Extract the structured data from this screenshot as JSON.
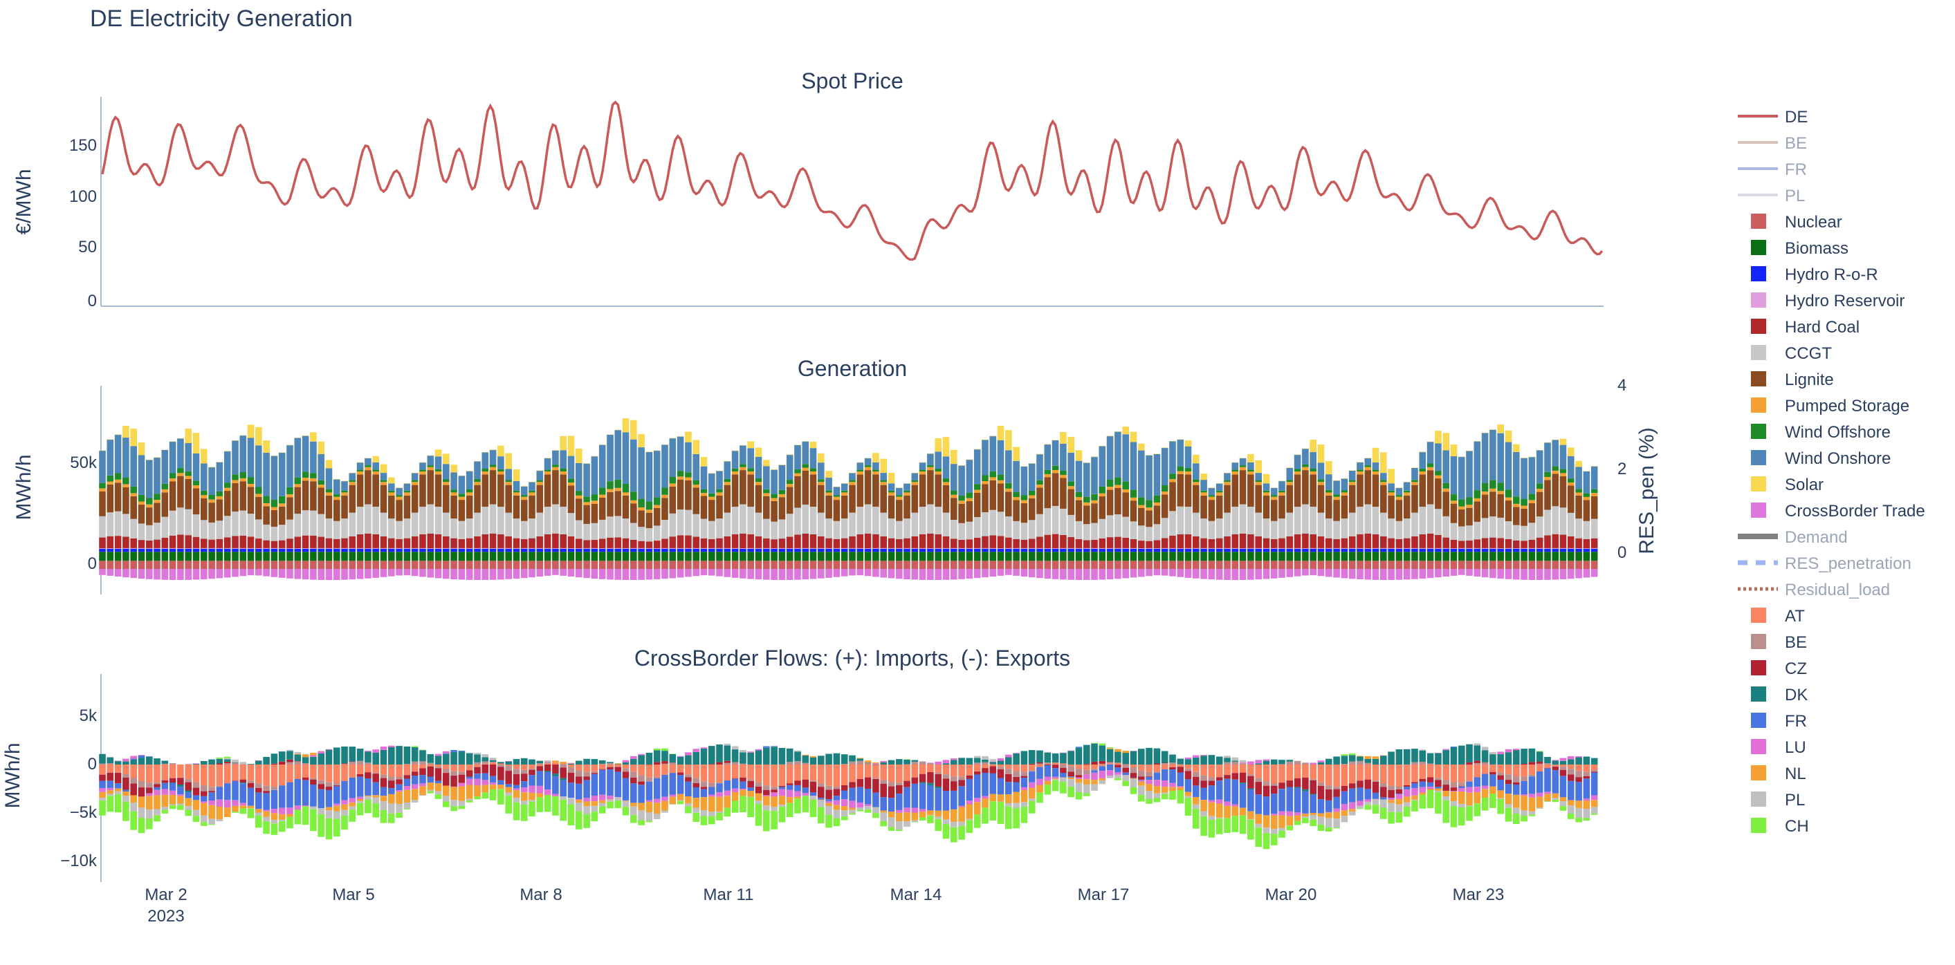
{
  "title": "DE Electricity Generation",
  "colors": {
    "text": "#2a3f5f",
    "axis": "#a9bad0"
  },
  "chart_data": [
    {
      "type": "line",
      "title": "Spot Price",
      "ylabel": "€/MWh",
      "x_range": [
        "2023-03-01",
        "2023-03-25"
      ],
      "y_ticks": [
        "0",
        "50",
        "100",
        "150"
      ],
      "ylim": [
        0,
        190
      ],
      "series": [
        {
          "name": "DE",
          "color": "#c85a5a",
          "points": [
            [
              "2023-03-01",
              135
            ],
            [
              "2023-03-02",
              130
            ],
            [
              "2023-03-03",
              140
            ],
            [
              "2023-03-04",
              105
            ],
            [
              "2023-03-05",
              110
            ],
            [
              "2023-03-06",
              125
            ],
            [
              "2023-03-07",
              140
            ],
            [
              "2023-03-08",
              115
            ],
            [
              "2023-03-09",
              145
            ],
            [
              "2023-03-10",
              120
            ],
            [
              "2023-03-11",
              110
            ],
            [
              "2023-03-12",
              105
            ],
            [
              "2023-03-13",
              80
            ],
            [
              "2023-03-14",
              45
            ],
            [
              "2023-03-15",
              110
            ],
            [
              "2023-03-16",
              130
            ],
            [
              "2023-03-17",
              110
            ],
            [
              "2023-03-18",
              115
            ],
            [
              "2023-03-19",
              95
            ],
            [
              "2023-03-20",
              110
            ],
            [
              "2023-03-21",
              115
            ],
            [
              "2023-03-22",
              100
            ],
            [
              "2023-03-23",
              80
            ],
            [
              "2023-03-24",
              70
            ],
            [
              "2023-03-25",
              55
            ]
          ]
        },
        {
          "name": "BE",
          "color": "#d6c1b8",
          "visible": false
        },
        {
          "name": "FR",
          "color": "#a9b7e8",
          "visible": false
        },
        {
          "name": "PL",
          "color": "#d9dde3",
          "visible": false
        }
      ]
    },
    {
      "type": "bar",
      "title": "Generation",
      "ylabel": "MWh/h",
      "y2label": "RES_pen (%)",
      "y_ticks": [
        "0",
        "50k"
      ],
      "y2_ticks": [
        "0",
        "2",
        "4"
      ],
      "ylim": [
        -15000,
        92000
      ],
      "x_range": [
        "2023-03-01",
        "2023-03-25"
      ],
      "stacked": true,
      "series": [
        {
          "name": "Nuclear",
          "color": "#cd5c5c",
          "values": [
            4000
          ]
        },
        {
          "name": "Biomass",
          "color": "#0a6e14",
          "values": [
            4500
          ]
        },
        {
          "name": "Hydro R-o-R",
          "color": "#1426ff",
          "values": [
            1500
          ]
        },
        {
          "name": "Hydro Reservoir",
          "color": "#e0a0de",
          "values": [
            300
          ]
        },
        {
          "name": "Hard Coal",
          "color": "#b22828",
          "values": [
            6000
          ]
        },
        {
          "name": "CCGT",
          "color": "#c8c8c8",
          "values": [
            12000
          ]
        },
        {
          "name": "Lignite",
          "color": "#8b4a20",
          "values": [
            14000
          ]
        },
        {
          "name": "Pumped Storage",
          "color": "#f5a033",
          "values": [
            1500
          ]
        },
        {
          "name": "Wind Offshore",
          "color": "#1e8a28",
          "values": [
            3000
          ]
        },
        {
          "name": "Wind Onshore",
          "color": "#4f86b8",
          "values": [
            18000
          ]
        },
        {
          "name": "Solar",
          "color": "#f8d850",
          "values": [
            6000
          ]
        },
        {
          "name": "CrossBorder Trade",
          "color": "#dd77dd",
          "values": [
            -5000
          ]
        },
        {
          "name": "Demand",
          "color": "#808080",
          "visible": false
        },
        {
          "name": "RES_penetration",
          "color": "#a0b4f0",
          "visible": false
        },
        {
          "name": "Residual_load",
          "color": "#b86a5c",
          "visible": false
        }
      ]
    },
    {
      "type": "bar",
      "title": "CrossBorder Flows: (+): Imports, (-): Exports",
      "ylabel": "MWh/h",
      "y_ticks": [
        "−10k",
        "−5k",
        "0",
        "5k"
      ],
      "ylim": [
        -12000,
        9000
      ],
      "x_ticks": [
        "Mar 2",
        "Mar 5",
        "Mar 8",
        "Mar 11",
        "Mar 14",
        "Mar 17",
        "Mar 20",
        "Mar 23"
      ],
      "x_year": "2023",
      "stacked": true,
      "series": [
        {
          "name": "AT",
          "color": "#fa8462"
        },
        {
          "name": "BE",
          "color": "#bc8f8f"
        },
        {
          "name": "CZ",
          "color": "#b22232"
        },
        {
          "name": "DK",
          "color": "#1a8080"
        },
        {
          "name": "FR",
          "color": "#4a74e0"
        },
        {
          "name": "LU",
          "color": "#e070d8"
        },
        {
          "name": "NL",
          "color": "#f5a033"
        },
        {
          "name": "PL",
          "color": "#c0c0c0"
        },
        {
          "name": "CH",
          "color": "#80f040"
        }
      ]
    }
  ]
}
